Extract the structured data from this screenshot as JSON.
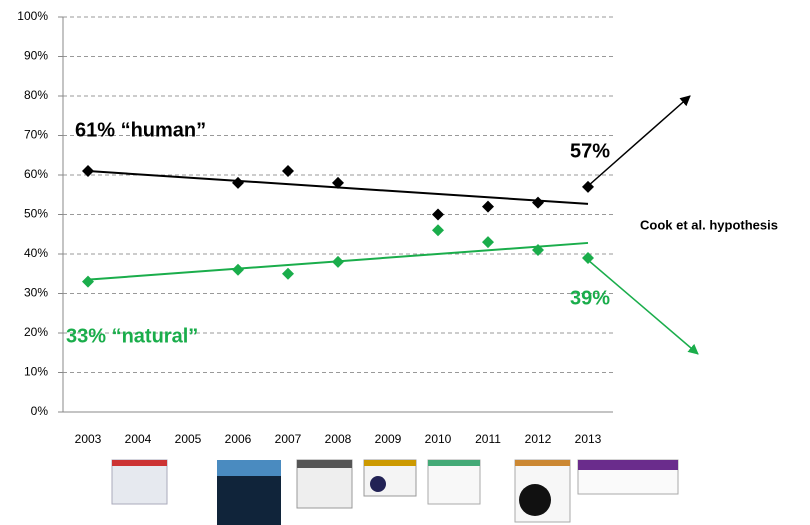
{
  "chart_data": {
    "type": "scatter",
    "x": [
      2003,
      2006,
      2007,
      2008,
      2010,
      2011,
      2012,
      2013
    ],
    "series": [
      {
        "name": null,
        "color": "#000000",
        "values": [
          61,
          58,
          61,
          58,
          50,
          52,
          53,
          57
        ],
        "trend": [
          61,
          52.7
        ]
      },
      {
        "name": null,
        "color": "#1aad4b",
        "values": [
          33,
          36,
          35,
          38,
          46,
          43,
          41,
          39
        ],
        "trend": [
          33.5,
          42.8
        ]
      }
    ],
    "trend_x": [
      2003,
      2013
    ],
    "xlim": [
      2002.5,
      2013.5
    ],
    "xticks": [
      2003,
      2004,
      2005,
      2006,
      2007,
      2008,
      2009,
      2010,
      2011,
      2012,
      2013
    ],
    "ylim": [
      0,
      100
    ],
    "yticks": [
      {
        "value": 0,
        "label": "0%"
      },
      {
        "value": 10,
        "label": "10%"
      },
      {
        "value": 20,
        "label": "20%"
      },
      {
        "value": 30,
        "label": "30%"
      },
      {
        "value": 40,
        "label": "40%"
      },
      {
        "value": 50,
        "label": "50%"
      },
      {
        "value": 60,
        "label": "60%"
      },
      {
        "value": 70,
        "label": "70%"
      },
      {
        "value": 80,
        "label": "80%"
      },
      {
        "value": 90,
        "label": "90%"
      },
      {
        "value": 100,
        "label": "100%"
      }
    ],
    "grid": true,
    "annotations": [
      "61%  “human”",
      "57%",
      "33% “natural”",
      "39%",
      "Cook et al. hypothesis"
    ]
  }
}
